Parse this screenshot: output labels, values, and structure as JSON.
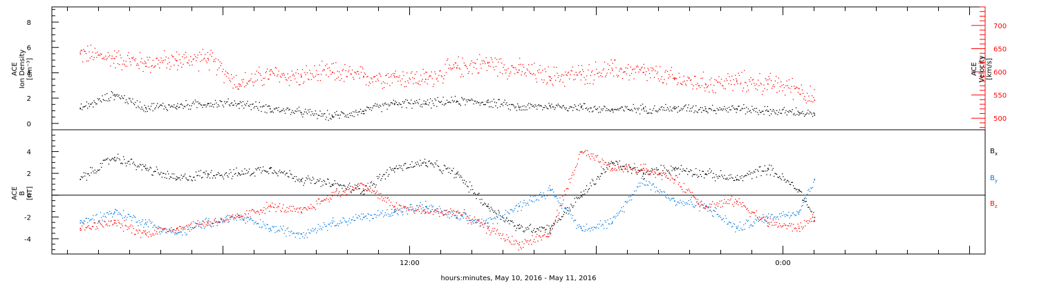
{
  "chart_data": [
    {
      "type": "scatter",
      "panel": "top",
      "ylabel_left": [
        "ACE",
        "Ion Density",
        "[cm⁻³]"
      ],
      "ylabel_right": [
        "ACE",
        "Velocity",
        "[km/s]"
      ],
      "ylim_left": [
        -0.5,
        9.2
      ],
      "ylim_right": [
        475,
        740
      ],
      "yticks_left": [
        "0",
        "2",
        "4",
        "6",
        "8"
      ],
      "yticks_right": [
        "500",
        "550",
        "600",
        "650",
        "700"
      ],
      "colors": {
        "density": "#000000",
        "velocity": "#ff0000"
      },
      "series": [
        {
          "name": "",
          "axis": "left",
          "color": "#000000",
          "x": [
            -10.6,
            -9.5,
            -8.5,
            -7.5,
            -6.5,
            -5.5,
            -4.5,
            -3.5,
            -2.5,
            -1.5,
            -0.5,
            0.5,
            1.5,
            2.5,
            3.5,
            4.5,
            5.5,
            6.5,
            7.5,
            8.5,
            9.5,
            10.5,
            11.5,
            12.5,
            13.0
          ],
          "values": [
            1.2,
            2.3,
            1.3,
            1.4,
            1.6,
            1.6,
            1.2,
            0.9,
            0.6,
            1.0,
            1.6,
            1.6,
            1.8,
            1.7,
            1.3,
            1.4,
            1.3,
            1.1,
            1.2,
            1.2,
            1.2,
            1.2,
            1.0,
            0.9,
            0.7
          ]
        },
        {
          "name": "",
          "axis": "right",
          "color": "#ff0000",
          "x": [
            -10.6,
            -9.5,
            -8.5,
            -7.5,
            -6.5,
            -5.5,
            -4.5,
            -3.5,
            -2.5,
            -1.5,
            -0.5,
            0.5,
            1.5,
            2.5,
            3.5,
            4.5,
            5.5,
            6.5,
            7.5,
            8.5,
            9.5,
            10.5,
            11.5,
            12.5,
            13.0
          ],
          "values": [
            640,
            630,
            620,
            625,
            630,
            575,
            595,
            590,
            600,
            590,
            590,
            585,
            610,
            620,
            605,
            590,
            595,
            605,
            600,
            585,
            575,
            580,
            575,
            565,
            540
          ]
        }
      ]
    },
    {
      "type": "scatter",
      "panel": "bottom",
      "ylabel_left": [
        "ACE",
        "B",
        "[nT]"
      ],
      "ylim": [
        -5.4,
        6.0
      ],
      "yticks": [
        "-4",
        "-2",
        "0",
        "2",
        "4"
      ],
      "x_ticks": [
        "12:00",
        "0:00"
      ],
      "x_tick_positions": [
        0,
        12
      ],
      "xlabel": "hours:minutes, May 10, 2016 - May 11, 2016",
      "xlim": [
        -11.5,
        18.5
      ],
      "legend": [
        {
          "base": "B",
          "sub": "x",
          "color": "#000000"
        },
        {
          "base": "B",
          "sub": "y",
          "color": "#0077dd"
        },
        {
          "base": "B",
          "sub": "z",
          "color": "#ff0000"
        }
      ],
      "series": [
        {
          "name": "Bx",
          "color": "#000000",
          "x": [
            -10.6,
            -9.5,
            -8.5,
            -7.5,
            -6.5,
            -5.5,
            -4.5,
            -3.5,
            -2.5,
            -1.5,
            -0.5,
            0.5,
            1.5,
            2.5,
            3.5,
            4.5,
            5.5,
            6.5,
            7.5,
            8.5,
            9.5,
            10.5,
            11.5,
            12.5,
            13.0
          ],
          "values": [
            1.5,
            3.5,
            2.5,
            1.5,
            2.0,
            2.0,
            2.5,
            1.5,
            1.0,
            0.5,
            2.5,
            3.0,
            2.0,
            -1.0,
            -3.0,
            -3.0,
            0.0,
            3.0,
            2.0,
            2.5,
            2.0,
            1.5,
            2.5,
            0.5,
            -2.0
          ]
        },
        {
          "name": "By",
          "color": "#0077dd",
          "x": [
            -10.6,
            -9.5,
            -8.5,
            -7.5,
            -6.5,
            -5.5,
            -4.5,
            -3.5,
            -2.5,
            -1.5,
            -0.5,
            0.5,
            1.5,
            2.5,
            3.5,
            4.5,
            5.5,
            6.5,
            7.5,
            8.5,
            9.5,
            10.5,
            11.5,
            12.5,
            13.0
          ],
          "values": [
            -2.5,
            -1.5,
            -2.5,
            -3.5,
            -2.5,
            -2.0,
            -3.0,
            -3.5,
            -2.5,
            -2.0,
            -1.5,
            -1.0,
            -2.0,
            -2.5,
            -1.0,
            0.5,
            -3.0,
            -2.5,
            1.5,
            -0.5,
            -1.0,
            -3.0,
            -2.0,
            -1.5,
            1.5
          ]
        },
        {
          "name": "Bz",
          "color": "#ff0000",
          "x": [
            -10.6,
            -9.5,
            -8.5,
            -7.5,
            -6.5,
            -5.5,
            -4.5,
            -3.5,
            -2.5,
            -1.5,
            -0.5,
            0.5,
            1.5,
            2.5,
            3.5,
            4.5,
            5.5,
            6.5,
            7.5,
            8.5,
            9.5,
            10.5,
            11.5,
            12.5,
            13.0
          ],
          "values": [
            -3.0,
            -2.5,
            -3.5,
            -3.0,
            -2.5,
            -2.0,
            -1.0,
            -1.5,
            0.0,
            1.0,
            -1.0,
            -1.5,
            -1.5,
            -3.0,
            -4.5,
            -3.5,
            4.0,
            2.5,
            2.5,
            1.5,
            -1.0,
            -0.5,
            -2.5,
            -3.0,
            -2.0
          ]
        }
      ]
    }
  ]
}
